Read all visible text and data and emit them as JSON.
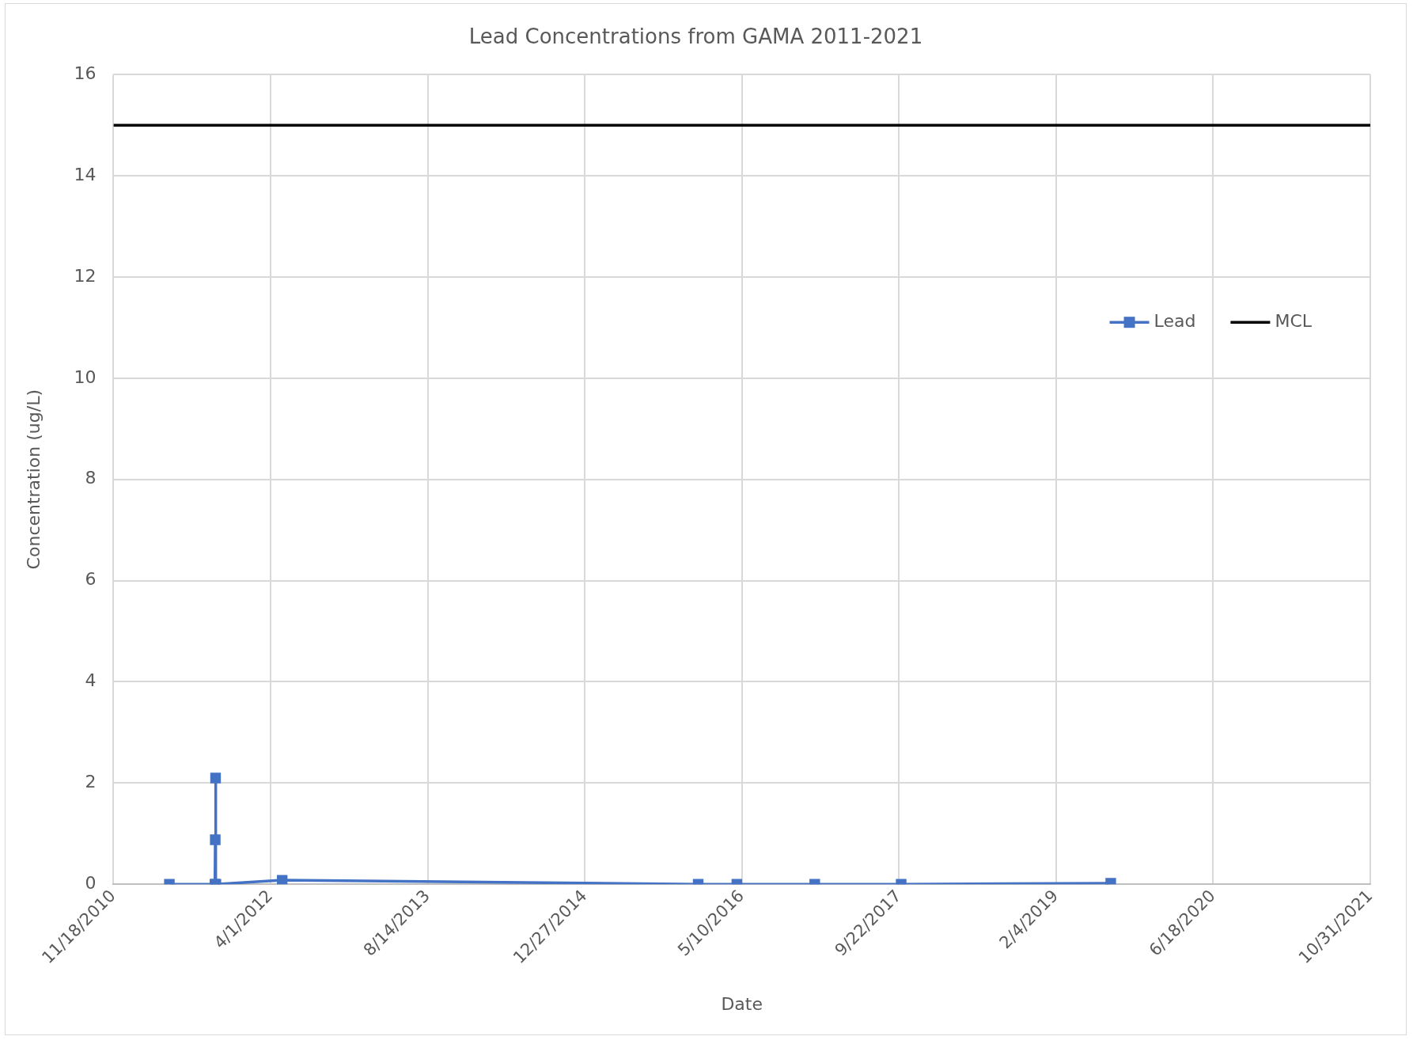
{
  "chart_data": {
    "type": "line",
    "title": "Lead Concentrations from GAMA 2011-2021",
    "xlabel": "Date",
    "ylabel": "Concentration (ug/L)",
    "xlim": [
      "2010-11-18",
      "2021-10-31"
    ],
    "xticks": [
      {
        "value": "2010-11-18",
        "label": "11/18/2010"
      },
      {
        "value": "2012-04-01",
        "label": "4/1/2012"
      },
      {
        "value": "2013-08-14",
        "label": "8/14/2013"
      },
      {
        "value": "2014-12-27",
        "label": "12/27/2014"
      },
      {
        "value": "2016-05-10",
        "label": "5/10/2016"
      },
      {
        "value": "2017-09-22",
        "label": "9/22/2017"
      },
      {
        "value": "2019-02-04",
        "label": "2/4/2019"
      },
      {
        "value": "2020-06-18",
        "label": "6/18/2020"
      },
      {
        "value": "2021-10-31",
        "label": "10/31/2021"
      }
    ],
    "ylim": [
      0,
      16
    ],
    "yticks": [
      0,
      2,
      4,
      6,
      8,
      10,
      12,
      14,
      16
    ],
    "grid": true,
    "legend": "top right",
    "series": [
      {
        "name": "Lead",
        "color": "#4472c4",
        "marker": "square",
        "x": [
          "2011-05-15",
          "2011-10-07",
          "2011-10-08",
          "2011-10-09",
          "2011-10-10",
          "2012-05-08",
          "2015-12-23",
          "2016-04-24",
          "2016-12-28",
          "2017-09-29",
          "2019-07-28"
        ],
        "values": [
          0,
          0,
          0.88,
          2.1,
          0,
          0.08,
          0,
          0,
          0,
          0,
          0.02
        ]
      },
      {
        "name": "MCL",
        "color": "#000000",
        "marker": "none",
        "x": [
          "2010-11-18",
          "2021-10-31"
        ],
        "values": [
          15,
          15
        ]
      }
    ]
  }
}
